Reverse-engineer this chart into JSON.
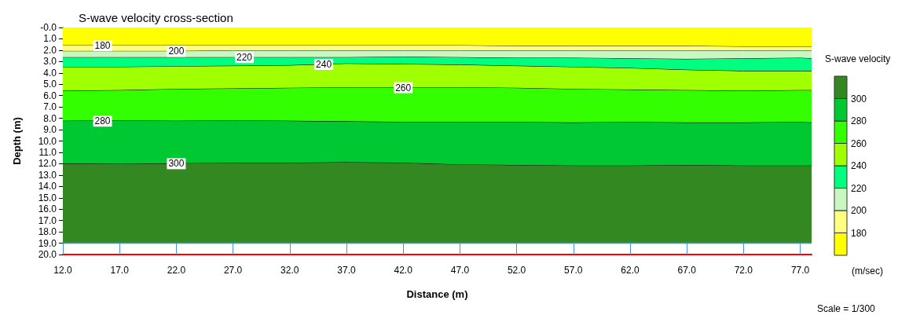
{
  "chart_data": {
    "type": "area",
    "title": "S-wave velocity cross-section",
    "xlabel": "Distance (m)",
    "ylabel": "Depth (m)",
    "clabel": "S-wave velocity",
    "x": [
      12,
      17,
      22,
      27,
      32,
      37,
      42,
      47,
      52,
      57,
      62,
      67,
      72,
      77,
      78
    ],
    "series": [
      {
        "color": "#ffff00",
        "values": [
          1.6,
          1.6,
          1.6,
          1.6,
          1.6,
          1.6,
          1.6,
          1.6,
          1.65,
          1.65,
          1.65,
          1.65,
          1.7,
          1.7,
          1.7
        ]
      },
      {
        "color": "#ffff80",
        "values": [
          0.5,
          0.5,
          0.5,
          0.45,
          0.45,
          0.45,
          0.45,
          0.45,
          0.4,
          0.4,
          0.4,
          0.4,
          0.35,
          0.35,
          0.35
        ]
      },
      {
        "color": "#c8f8c0",
        "values": [
          0.55,
          0.55,
          0.55,
          0.6,
          0.6,
          0.6,
          0.55,
          0.6,
          0.65,
          0.65,
          0.7,
          0.75,
          0.7,
          0.65,
          0.7
        ]
      },
      {
        "color": "#00ff80",
        "values": [
          0.85,
          0.85,
          0.8,
          0.75,
          0.7,
          0.55,
          0.65,
          0.65,
          0.7,
          0.8,
          0.85,
          0.95,
          1.1,
          1.15,
          1.1
        ]
      },
      {
        "color": "#a0ff00",
        "values": [
          2.1,
          2.05,
          2.0,
          2.0,
          2.0,
          2.1,
          2.05,
          2.0,
          1.95,
          1.95,
          1.9,
          1.8,
          1.75,
          1.7,
          1.7
        ]
      },
      {
        "color": "#33ff00",
        "values": [
          2.65,
          2.65,
          2.8,
          2.8,
          2.9,
          3.0,
          3.05,
          3.05,
          3.0,
          2.95,
          2.85,
          2.85,
          2.8,
          2.8,
          2.85
        ]
      },
      {
        "color": "#00c832",
        "values": [
          3.75,
          3.85,
          3.75,
          3.75,
          3.7,
          3.6,
          3.6,
          3.75,
          3.8,
          3.8,
          3.85,
          3.75,
          3.8,
          3.85,
          3.8
        ]
      },
      {
        "color": "#338822",
        "values": [
          7.0,
          6.95,
          7.0,
          7.05,
          7.05,
          7.1,
          7.05,
          6.9,
          6.85,
          6.8,
          6.8,
          6.85,
          6.8,
          6.8,
          6.8
        ]
      }
    ],
    "stacked": true,
    "xlim": [
      12,
      78
    ],
    "xticks": [
      {
        "value": 12,
        "label": "12.0"
      },
      {
        "value": 17,
        "label": "17.0"
      },
      {
        "value": 22,
        "label": "22.0"
      },
      {
        "value": 27,
        "label": "27.0"
      },
      {
        "value": 32,
        "label": "32.0"
      },
      {
        "value": 37,
        "label": "37.0"
      },
      {
        "value": 42,
        "label": "42.0"
      },
      {
        "value": 47,
        "label": "47.0"
      },
      {
        "value": 52,
        "label": "52.0"
      },
      {
        "value": 57,
        "label": "57.0"
      },
      {
        "value": 62,
        "label": "62.0"
      },
      {
        "value": 67,
        "label": "67.0"
      },
      {
        "value": 72,
        "label": "72.0"
      },
      {
        "value": 77,
        "label": "77.0"
      }
    ],
    "ylim": [
      20,
      0
    ],
    "yticks": [
      {
        "value": 0,
        "label": "-0.0"
      },
      {
        "value": 1,
        "label": "1.0"
      },
      {
        "value": 2,
        "label": "2.0"
      },
      {
        "value": 3,
        "label": "3.0"
      },
      {
        "value": 4,
        "label": "4.0"
      },
      {
        "value": 5,
        "label": "5.0"
      },
      {
        "value": 6,
        "label": "6.0"
      },
      {
        "value": 7,
        "label": "7.0"
      },
      {
        "value": 8,
        "label": "8.0"
      },
      {
        "value": 9,
        "label": "9.0"
      },
      {
        "value": 10,
        "label": "10.0"
      },
      {
        "value": 11,
        "label": "11.0"
      },
      {
        "value": 12,
        "label": "12.0"
      },
      {
        "value": 13,
        "label": "13.0"
      },
      {
        "value": 14,
        "label": "14.0"
      },
      {
        "value": 15,
        "label": "15.0"
      },
      {
        "value": 16,
        "label": "16.0"
      },
      {
        "value": 17,
        "label": "17.0"
      },
      {
        "value": 18,
        "label": "18.0"
      },
      {
        "value": 19,
        "label": "19.0"
      },
      {
        "value": 20,
        "label": "20.0"
      }
    ],
    "clim": [
      160,
      320
    ],
    "cticks": [
      180,
      200,
      220,
      240,
      260,
      280,
      300
    ],
    "line_style": "solid",
    "ref_lines": [
      {
        "axis": "y",
        "value": 19,
        "color": "#4a90e2"
      }
    ],
    "annotations": [
      {
        "text": "180",
        "x": 15.5,
        "y": 1.6
      },
      {
        "text": "200",
        "x": 22,
        "y": 2.1
      },
      {
        "text": "220",
        "x": 28,
        "y": 2.65
      },
      {
        "text": "240",
        "x": 35,
        "y": 3.25
      },
      {
        "text": "260",
        "x": 42,
        "y": 5.3
      },
      {
        "text": "280",
        "x": 15.5,
        "y": 8.25
      },
      {
        "text": "300",
        "x": 22,
        "y": 12.0
      },
      "(m/sec)",
      "Scale = 1/300"
    ]
  }
}
